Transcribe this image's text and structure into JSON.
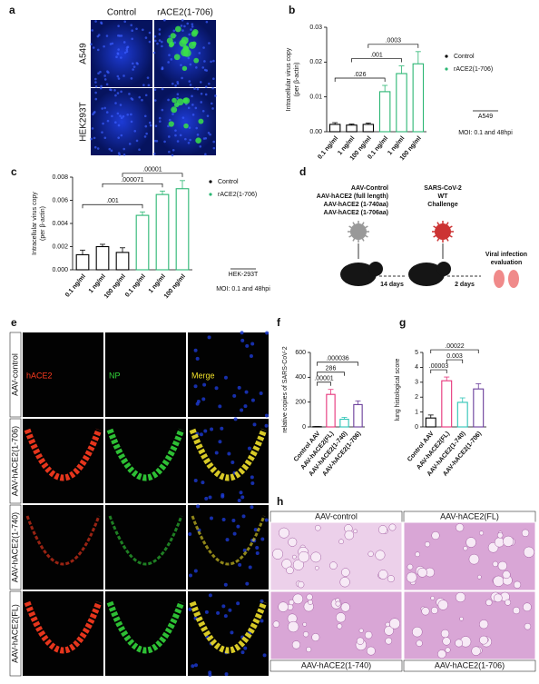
{
  "panel_letters": [
    "a",
    "b",
    "c",
    "d",
    "e",
    "f",
    "g",
    "h"
  ],
  "chart_data": [
    {
      "type": "bar",
      "categories": [
        "0.1 ng/ml",
        "1 ng/ml",
        "100 ng/ml",
        "0.1 ng/ml",
        "1 ng/ml",
        "100 ng/ml"
      ],
      "ylabel": [
        "Intracellular virus copy",
        "(per β-actin)"
      ],
      "ylim": [
        0,
        0.03
      ],
      "yticks": [
        {
          "value": 0,
          "label": "0.00"
        },
        {
          "value": 0.01,
          "label": "0.01"
        },
        {
          "value": 0.02,
          "label": "0.02"
        },
        {
          "value": 0.03,
          "label": "0.03"
        }
      ],
      "series": [
        {
          "name": "Control",
          "color": "#000000",
          "values": [
            0.0021,
            0.0019,
            0.0021,
            null,
            null,
            null
          ],
          "errors": [
            0.0005,
            0.0003,
            0.0004,
            null,
            null,
            null
          ]
        },
        {
          "name": "rACE2(1-706)",
          "color": "#2bb673",
          "values": [
            null,
            null,
            null,
            0.0115,
            0.0167,
            0.0195
          ],
          "errors": [
            null,
            null,
            null,
            0.0018,
            0.0022,
            0.0035
          ]
        }
      ],
      "brackets": [
        {
          "between": [
            0,
            3
          ],
          "label": ".026"
        },
        {
          "between": [
            1,
            4
          ],
          "label": ".001"
        },
        {
          "between": [
            2,
            5
          ],
          "label": ".0003"
        }
      ],
      "notes": [
        "A549",
        "MOI: 0.1 and 48hpi"
      ]
    },
    {
      "type": "bar",
      "categories": [
        "0.1 ng/ml",
        "1 ng/ml",
        "100 ng/ml",
        "0.1 ng/ml",
        "1 ng/ml",
        "100 ng/ml"
      ],
      "ylabel": [
        "Intracellular virus copy",
        "(per β-actin)"
      ],
      "ylim": [
        0,
        0.008
      ],
      "yticks": [
        {
          "value": 0,
          "label": "0.000"
        },
        {
          "value": 0.002,
          "label": "0.002"
        },
        {
          "value": 0.004,
          "label": "0.004"
        },
        {
          "value": 0.006,
          "label": "0.006"
        },
        {
          "value": 0.008,
          "label": "0.008"
        }
      ],
      "series": [
        {
          "name": "Control",
          "color": "#000000",
          "values": [
            0.0013,
            0.002,
            0.0015,
            null,
            null,
            null
          ],
          "errors": [
            0.0004,
            0.0002,
            0.0004,
            null,
            null,
            null
          ]
        },
        {
          "name": "rACE2(1-706)",
          "color": "#2bb673",
          "values": [
            null,
            null,
            null,
            0.0047,
            0.0065,
            0.007
          ],
          "errors": [
            null,
            null,
            null,
            0.0003,
            0.0003,
            0.0007
          ]
        }
      ],
      "brackets": [
        {
          "between": [
            0,
            3
          ],
          "label": ".001"
        },
        {
          "between": [
            1,
            4
          ],
          "label": ".000071"
        },
        {
          "between": [
            2,
            5
          ],
          "label": ".00001"
        }
      ],
      "notes": [
        "HEK-293T",
        "MOI: 0.1 and 48hpi"
      ]
    },
    {
      "type": "bar",
      "categories": [
        "Control AAV",
        "AAV-hACE2(FL)",
        "AAV-hACE2(1-740)",
        "AAV-hACE2(1-706)"
      ],
      "ylabel": [
        "relative  copies of SARS-CoV-2"
      ],
      "ylim": [
        0,
        600
      ],
      "yticks": [
        0,
        200,
        400,
        600
      ],
      "series": [
        {
          "colors": [
            "#000000",
            "#e6337a",
            "#2ec4b6",
            "#6a3d9a"
          ],
          "values": [
            2,
            262,
            62,
            180
          ],
          "errors": [
            1,
            40,
            15,
            30
          ]
        }
      ],
      "brackets": [
        {
          "between": [
            0,
            1
          ],
          "label": ".00001"
        },
        {
          "between": [
            0,
            2
          ],
          "label": "286"
        },
        {
          "between": [
            0,
            3
          ],
          "label": ".000036"
        }
      ]
    },
    {
      "type": "bar",
      "categories": [
        "Control AAV",
        "AAV-hACE2(FL)",
        "AAV-hACE2(1-740)",
        "AAV-hACE2(1-706)"
      ],
      "ylabel": [
        "lung histological score"
      ],
      "ylim": [
        0,
        5
      ],
      "yticks": [
        0,
        1,
        2,
        3,
        4,
        5
      ],
      "series": [
        {
          "colors": [
            "#000000",
            "#e6337a",
            "#2ec4b6",
            "#6a3d9a"
          ],
          "values": [
            0.6,
            3.1,
            1.65,
            2.55
          ],
          "errors": [
            0.2,
            0.25,
            0.3,
            0.35
          ]
        }
      ],
      "brackets": [
        {
          "between": [
            0,
            1
          ],
          "label": ".00003"
        },
        {
          "between": [
            1,
            2
          ],
          "label": "0.003"
        },
        {
          "between": [
            0,
            3
          ],
          "label": ".00022"
        }
      ]
    }
  ],
  "micro_a": {
    "cols": [
      "Control",
      "rACE2(1-706)"
    ],
    "rows": [
      "A549",
      "HEK293T"
    ]
  },
  "micro_e": {
    "rows": [
      "AAV-control",
      "AAV-hACE2(1-706)",
      "AAV-hACE2(1-740)",
      "AAV-hACE2(FL)"
    ],
    "channels": [
      "hACE2",
      "NP",
      "Merge"
    ]
  },
  "histo_h": {
    "top": [
      "AAV-control",
      "AAV-hACE2(FL)"
    ],
    "bottom": [
      "AAV-hACE2(1-740)",
      "AAV-hACE2(1-706)"
    ]
  },
  "diagram": {
    "groups": [
      "AAV-Control",
      "AAV-hACE2  (full length)",
      "AAV-hACE2  (1-740aa)",
      "AAV-hACE2  (1-706aa)"
    ],
    "challenge": [
      "SARS-CoV-2",
      "WT",
      "Challenge"
    ],
    "interval1": "14 days",
    "interval2": "2 days",
    "outcome": [
      "Viral infection",
      "evaluation"
    ]
  }
}
